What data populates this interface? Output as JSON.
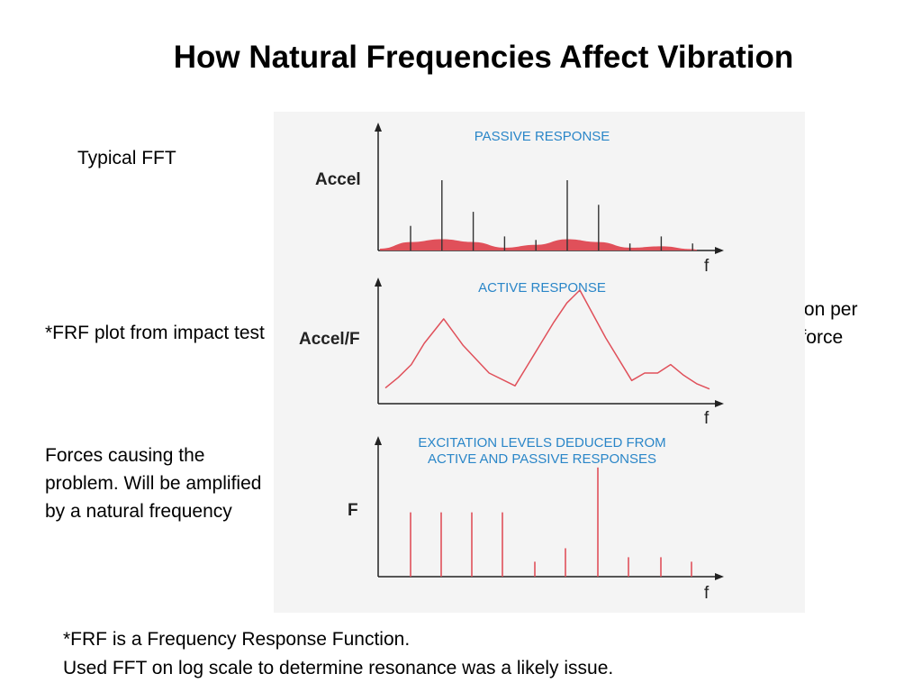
{
  "title": "How Natural Frequencies Affect Vibration",
  "notes": {
    "typical_fft": "Typical FFT",
    "frf": "*FRF plot from impact test",
    "forces": "Forces causing the problem.  Will be amplified by a natural frequency",
    "gs": "gs of vibration per pound of force"
  },
  "footer": {
    "line1": "*FRF is a Frequency Response Function.",
    "line2": "Used FFT on log scale to determine resonance was a likely issue."
  },
  "colors": {
    "accent": "#e0505a",
    "panel_title": "#2a86c8",
    "figure_bg": "#f4f4f4"
  },
  "chart_data": [
    {
      "type": "bar",
      "title": "PASSIVE RESPONSE",
      "ylabel": "Accel",
      "xlabel": "f",
      "grid": false,
      "x": [
        1,
        2,
        3,
        4,
        5,
        6,
        7,
        8,
        9,
        10
      ],
      "values": [
        0.35,
        1.0,
        0.55,
        0.2,
        0.15,
        1.0,
        0.65,
        0.1,
        0.2,
        0.1
      ],
      "floor": [
        0.12,
        0.16,
        0.12,
        0.04,
        0.08,
        0.16,
        0.12,
        0.04,
        0.06,
        0.02
      ]
    },
    {
      "type": "line",
      "title": "ACTIVE RESPONSE",
      "ylabel": "Accel/F",
      "xlabel": "f",
      "grid": false,
      "x": [
        0,
        2,
        4,
        6,
        9,
        12,
        16,
        20,
        22,
        23,
        24,
        26,
        28,
        30,
        34,
        38,
        40,
        42,
        44,
        46,
        48,
        50
      ],
      "y": [
        0.08,
        0.18,
        0.3,
        0.5,
        0.73,
        0.48,
        0.22,
        0.1,
        0.3,
        0.4,
        0.5,
        0.7,
        0.88,
        1.0,
        0.55,
        0.15,
        0.22,
        0.22,
        0.3,
        0.2,
        0.12,
        0.07
      ]
    },
    {
      "type": "bar",
      "title": "EXCITATION LEVELS DEDUCED FROM ACTIVE AND PASSIVE RESPONSES",
      "ylabel": "F",
      "xlabel": "f",
      "grid": false,
      "x": [
        1,
        2,
        3,
        4,
        5,
        6,
        7,
        8,
        9,
        10
      ],
      "values": [
        0.43,
        0.43,
        0.43,
        0.43,
        0.1,
        0.19,
        0.73,
        0.13,
        0.13,
        0.1
      ]
    }
  ]
}
